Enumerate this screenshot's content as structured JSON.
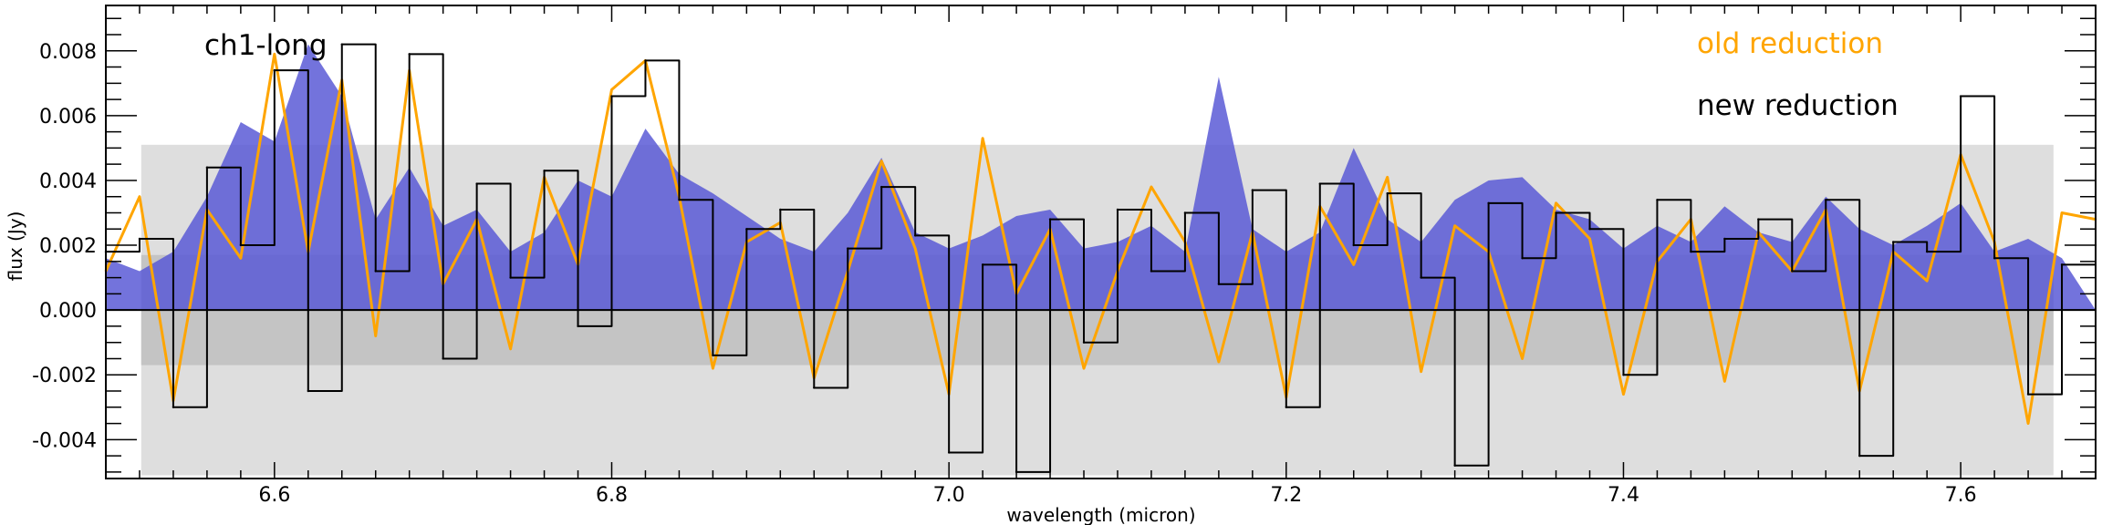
{
  "chart_data": {
    "type": "line",
    "xlabel": "wavelength (micron)",
    "ylabel": "flux (Jy)",
    "xlim": [
      6.5,
      7.68
    ],
    "ylim": [
      -0.0052,
      0.0094
    ],
    "x_ticks": [
      6.6,
      6.8,
      7.0,
      7.2,
      7.4,
      7.6
    ],
    "x_tick_labels": [
      "6.6",
      "6.8",
      "7.0",
      "7.2",
      "7.4",
      "7.6"
    ],
    "y_ticks": [
      -0.004,
      -0.002,
      0.0,
      0.002,
      0.004,
      0.006,
      0.008
    ],
    "y_tick_labels": [
      "-0.004",
      "-0.002",
      "0.000",
      "0.002",
      "0.004",
      "0.006",
      "0.008"
    ],
    "annotation": "ch1-long",
    "legend_location": "top-right",
    "grid": false,
    "bands": [
      {
        "x_range": [
          6.521,
          7.655
        ],
        "y_range": [
          -0.0051,
          0.0051
        ],
        "color": "#dedede"
      },
      {
        "x_range": [
          6.521,
          7.655
        ],
        "y_range": [
          -0.0017,
          0.0017
        ],
        "color": "#c4c4c4"
      }
    ],
    "series": [
      {
        "name": "old reduction",
        "color": "#ffa500",
        "x": [
          6.5,
          6.52,
          6.54,
          6.56,
          6.58,
          6.6,
          6.62,
          6.64,
          6.66,
          6.68,
          6.7,
          6.72,
          6.74,
          6.76,
          6.78,
          6.8,
          6.82,
          6.84,
          6.86,
          6.88,
          6.9,
          6.92,
          6.94,
          6.96,
          6.98,
          7.0,
          7.02,
          7.04,
          7.06,
          7.08,
          7.1,
          7.12,
          7.14,
          7.16,
          7.18,
          7.2,
          7.22,
          7.24,
          7.26,
          7.28,
          7.3,
          7.32,
          7.34,
          7.36,
          7.38,
          7.4,
          7.42,
          7.44,
          7.46,
          7.48,
          7.5,
          7.52,
          7.54,
          7.56,
          7.58,
          7.6,
          7.62,
          7.64,
          7.66,
          7.68
        ],
        "y": [
          0.0012,
          0.0035,
          -0.0028,
          0.0031,
          0.0016,
          0.0079,
          0.0018,
          0.0071,
          -0.0008,
          0.0074,
          0.0008,
          0.0028,
          -0.0012,
          0.0041,
          0.0014,
          0.0068,
          0.0077,
          0.0035,
          -0.0018,
          0.0021,
          0.0027,
          -0.0021,
          0.0012,
          0.0046,
          0.0019,
          -0.0026,
          0.0053,
          0.0005,
          0.0025,
          -0.0018,
          0.0012,
          0.0038,
          0.0021,
          -0.0016,
          0.0024,
          -0.0027,
          0.0032,
          0.0014,
          0.0041,
          -0.0019,
          0.0026,
          0.0018,
          -0.0015,
          0.0033,
          0.0022,
          -0.0026,
          0.0015,
          0.0028,
          -0.0022,
          0.0024,
          0.0012,
          0.0031,
          -0.0025,
          0.0018,
          0.0009,
          0.0048,
          0.0021,
          -0.0035,
          0.003,
          0.0028
        ]
      },
      {
        "name": "new reduction",
        "color": "#000000",
        "x": [
          6.5,
          6.52,
          6.54,
          6.56,
          6.58,
          6.6,
          6.62,
          6.64,
          6.66,
          6.68,
          6.7,
          6.72,
          6.74,
          6.76,
          6.78,
          6.8,
          6.82,
          6.84,
          6.86,
          6.88,
          6.9,
          6.92,
          6.94,
          6.96,
          6.98,
          7.0,
          7.02,
          7.04,
          7.06,
          7.08,
          7.1,
          7.12,
          7.14,
          7.16,
          7.18,
          7.2,
          7.22,
          7.24,
          7.26,
          7.28,
          7.3,
          7.32,
          7.34,
          7.36,
          7.38,
          7.4,
          7.42,
          7.44,
          7.46,
          7.48,
          7.5,
          7.52,
          7.54,
          7.56,
          7.58,
          7.6,
          7.62,
          7.64,
          7.66,
          7.68
        ],
        "y": [
          0.0018,
          0.0022,
          -0.003,
          0.0044,
          0.002,
          0.0074,
          -0.0025,
          0.0082,
          0.0012,
          0.0079,
          -0.0015,
          0.0039,
          0.001,
          0.0043,
          -0.0005,
          0.0066,
          0.0077,
          0.0034,
          -0.0014,
          0.0025,
          0.0031,
          -0.0024,
          0.0019,
          0.0038,
          0.0023,
          -0.0044,
          0.0014,
          -0.005,
          0.0028,
          -0.001,
          0.0031,
          0.0012,
          0.003,
          0.0008,
          0.0037,
          -0.003,
          0.0039,
          0.002,
          0.0036,
          0.001,
          -0.0048,
          0.0033,
          0.0016,
          0.003,
          0.0025,
          -0.002,
          0.0034,
          0.0018,
          0.0022,
          0.0028,
          0.0012,
          0.0034,
          -0.0045,
          0.0021,
          0.0018,
          0.0066,
          0.0016,
          -0.0026,
          0.0014,
          0.002
        ]
      },
      {
        "name": "",
        "color": "#5a5ad6",
        "fill": true,
        "x": [
          6.5,
          6.52,
          6.54,
          6.56,
          6.58,
          6.6,
          6.62,
          6.64,
          6.66,
          6.68,
          6.7,
          6.72,
          6.74,
          6.76,
          6.78,
          6.8,
          6.82,
          6.84,
          6.86,
          6.88,
          6.9,
          6.92,
          6.94,
          6.96,
          6.98,
          7.0,
          7.02,
          7.04,
          7.06,
          7.08,
          7.1,
          7.12,
          7.14,
          7.16,
          7.18,
          7.2,
          7.22,
          7.24,
          7.26,
          7.28,
          7.3,
          7.32,
          7.34,
          7.36,
          7.38,
          7.4,
          7.42,
          7.44,
          7.46,
          7.48,
          7.5,
          7.52,
          7.54,
          7.56,
          7.58,
          7.6,
          7.62,
          7.64,
          7.66,
          7.68
        ],
        "y": [
          0.0016,
          0.0012,
          0.0018,
          0.0035,
          0.0058,
          0.0052,
          0.0082,
          0.0066,
          0.0028,
          0.0044,
          0.0026,
          0.0031,
          0.0018,
          0.0024,
          0.004,
          0.0035,
          0.0056,
          0.0042,
          0.0036,
          0.0029,
          0.0022,
          0.0018,
          0.003,
          0.0047,
          0.0024,
          0.0019,
          0.0023,
          0.0029,
          0.0031,
          0.0019,
          0.0021,
          0.0026,
          0.0018,
          0.0072,
          0.0025,
          0.0018,
          0.0024,
          0.005,
          0.0028,
          0.0021,
          0.0034,
          0.004,
          0.0041,
          0.0031,
          0.0028,
          0.0019,
          0.0026,
          0.0021,
          0.0032,
          0.0024,
          0.0021,
          0.0035,
          0.0025,
          0.002,
          0.0026,
          0.0033,
          0.0018,
          0.0022,
          0.0016,
          0.0
        ]
      }
    ]
  }
}
